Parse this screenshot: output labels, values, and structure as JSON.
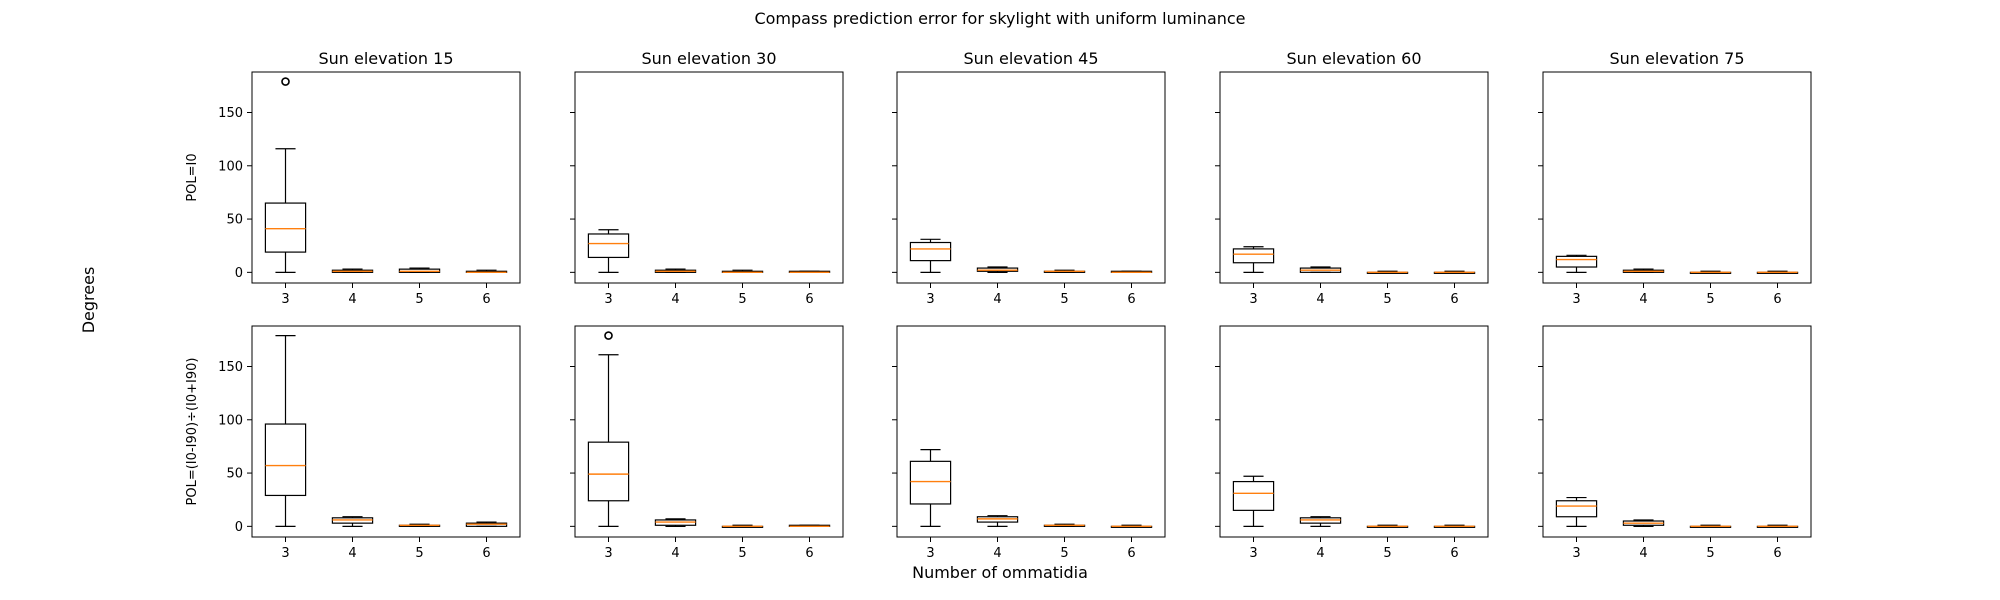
{
  "figure": {
    "title": "Compass prediction error for skylight with uniform luminance",
    "xlabel": "Number of ommatidia",
    "ylabel": "Degrees"
  },
  "chart_data": {
    "type": "box",
    "title": "Compass prediction error for skylight with uniform luminance",
    "xlabel": "Number of ommatidia",
    "ylabel": "Degrees",
    "columns": [
      "Sun elevation 15",
      "Sun elevation 30",
      "Sun elevation 45",
      "Sun elevation 60",
      "Sun elevation 75"
    ],
    "rows": [
      "POL=I0",
      "POL=(I0-I90)÷(I0+I90)"
    ],
    "categories": [
      "3",
      "4",
      "5",
      "6"
    ],
    "ylim": [
      -10,
      188
    ],
    "yticks": [
      0,
      50,
      100,
      150
    ],
    "colors": {
      "box": "#000000",
      "median": "#ff7f0e"
    },
    "panels": [
      {
        "row": 0,
        "col": 0,
        "boxes": [
          {
            "x": "3",
            "whislo": 0,
            "q1": 19,
            "med": 41,
            "q3": 65,
            "whishi": 116,
            "fliers": [
              179
            ]
          },
          {
            "x": "4",
            "whislo": 0,
            "q1": 0,
            "med": 1,
            "q3": 2,
            "whishi": 3,
            "fliers": []
          },
          {
            "x": "5",
            "whislo": 0,
            "q1": 0,
            "med": 1,
            "q3": 3,
            "whishi": 4,
            "fliers": []
          },
          {
            "x": "6",
            "whislo": 0,
            "q1": 0,
            "med": 0,
            "q3": 1,
            "whishi": 2,
            "fliers": []
          }
        ]
      },
      {
        "row": 0,
        "col": 1,
        "boxes": [
          {
            "x": "3",
            "whislo": 0,
            "q1": 14,
            "med": 27,
            "q3": 36,
            "whishi": 40,
            "fliers": []
          },
          {
            "x": "4",
            "whislo": 0,
            "q1": 0,
            "med": 1,
            "q3": 2,
            "whishi": 3,
            "fliers": []
          },
          {
            "x": "5",
            "whislo": 0,
            "q1": 0,
            "med": 0,
            "q3": 1,
            "whishi": 2,
            "fliers": []
          },
          {
            "x": "6",
            "whislo": 0,
            "q1": 0,
            "med": 0,
            "q3": 1,
            "whishi": 1,
            "fliers": []
          }
        ]
      },
      {
        "row": 0,
        "col": 2,
        "boxes": [
          {
            "x": "3",
            "whislo": 0,
            "q1": 11,
            "med": 22,
            "q3": 28,
            "whishi": 31,
            "fliers": []
          },
          {
            "x": "4",
            "whislo": 0,
            "q1": 1,
            "med": 2,
            "q3": 4,
            "whishi": 5,
            "fliers": []
          },
          {
            "x": "5",
            "whislo": 0,
            "q1": 0,
            "med": 1,
            "q3": 1,
            "whishi": 2,
            "fliers": []
          },
          {
            "x": "6",
            "whislo": 0,
            "q1": 0,
            "med": 0,
            "q3": 1,
            "whishi": 1,
            "fliers": []
          }
        ]
      },
      {
        "row": 0,
        "col": 3,
        "boxes": [
          {
            "x": "3",
            "whislo": 0,
            "q1": 9,
            "med": 17,
            "q3": 22,
            "whishi": 24,
            "fliers": []
          },
          {
            "x": "4",
            "whislo": 0,
            "q1": 0,
            "med": 2,
            "q3": 4,
            "whishi": 5,
            "fliers": []
          },
          {
            "x": "5",
            "whislo": 0,
            "q1": 0,
            "med": 0,
            "q3": 0,
            "whishi": 1,
            "fliers": []
          },
          {
            "x": "6",
            "whislo": 0,
            "q1": 0,
            "med": 0,
            "q3": 0,
            "whishi": 1,
            "fliers": []
          }
        ]
      },
      {
        "row": 0,
        "col": 4,
        "boxes": [
          {
            "x": "3",
            "whislo": 0,
            "q1": 5,
            "med": 12,
            "q3": 15,
            "whishi": 16,
            "fliers": []
          },
          {
            "x": "4",
            "whislo": 0,
            "q1": 0,
            "med": 1,
            "q3": 2,
            "whishi": 3,
            "fliers": []
          },
          {
            "x": "5",
            "whislo": 0,
            "q1": 0,
            "med": 0,
            "q3": 0,
            "whishi": 1,
            "fliers": []
          },
          {
            "x": "6",
            "whislo": 0,
            "q1": 0,
            "med": 0,
            "q3": 0,
            "whishi": 1,
            "fliers": []
          }
        ]
      },
      {
        "row": 1,
        "col": 0,
        "boxes": [
          {
            "x": "3",
            "whislo": 0,
            "q1": 29,
            "med": 57,
            "q3": 96,
            "whishi": 179,
            "fliers": []
          },
          {
            "x": "4",
            "whislo": 0,
            "q1": 3,
            "med": 6,
            "q3": 8,
            "whishi": 9,
            "fliers": []
          },
          {
            "x": "5",
            "whislo": 0,
            "q1": 0,
            "med": 1,
            "q3": 1,
            "whishi": 2,
            "fliers": []
          },
          {
            "x": "6",
            "whislo": 0,
            "q1": 0,
            "med": 2,
            "q3": 3,
            "whishi": 4,
            "fliers": []
          }
        ]
      },
      {
        "row": 1,
        "col": 1,
        "boxes": [
          {
            "x": "3",
            "whislo": 0,
            "q1": 24,
            "med": 49,
            "q3": 79,
            "whishi": 161,
            "fliers": [
              179
            ]
          },
          {
            "x": "4",
            "whislo": 0,
            "q1": 1,
            "med": 4,
            "q3": 6,
            "whishi": 7,
            "fliers": []
          },
          {
            "x": "5",
            "whislo": 0,
            "q1": 0,
            "med": 0,
            "q3": 0,
            "whishi": 1,
            "fliers": []
          },
          {
            "x": "6",
            "whislo": 0,
            "q1": 0,
            "med": 0,
            "q3": 1,
            "whishi": 1,
            "fliers": []
          }
        ]
      },
      {
        "row": 1,
        "col": 2,
        "boxes": [
          {
            "x": "3",
            "whislo": 0,
            "q1": 21,
            "med": 42,
            "q3": 61,
            "whishi": 72,
            "fliers": []
          },
          {
            "x": "4",
            "whislo": 0,
            "q1": 4,
            "med": 7,
            "q3": 9,
            "whishi": 10,
            "fliers": []
          },
          {
            "x": "5",
            "whislo": 0,
            "q1": 0,
            "med": 1,
            "q3": 1,
            "whishi": 2,
            "fliers": []
          },
          {
            "x": "6",
            "whislo": 0,
            "q1": 0,
            "med": 0,
            "q3": 0,
            "whishi": 1,
            "fliers": []
          }
        ]
      },
      {
        "row": 1,
        "col": 3,
        "boxes": [
          {
            "x": "3",
            "whislo": 0,
            "q1": 15,
            "med": 31,
            "q3": 42,
            "whishi": 47,
            "fliers": []
          },
          {
            "x": "4",
            "whislo": 0,
            "q1": 3,
            "med": 6,
            "q3": 8,
            "whishi": 9,
            "fliers": []
          },
          {
            "x": "5",
            "whislo": 0,
            "q1": 0,
            "med": 0,
            "q3": 0,
            "whishi": 1,
            "fliers": []
          },
          {
            "x": "6",
            "whislo": 0,
            "q1": 0,
            "med": 0,
            "q3": 0,
            "whishi": 1,
            "fliers": []
          }
        ]
      },
      {
        "row": 1,
        "col": 4,
        "boxes": [
          {
            "x": "3",
            "whislo": 0,
            "q1": 9,
            "med": 19,
            "q3": 24,
            "whishi": 27,
            "fliers": []
          },
          {
            "x": "4",
            "whislo": 0,
            "q1": 1,
            "med": 3,
            "q3": 5,
            "whishi": 6,
            "fliers": []
          },
          {
            "x": "5",
            "whislo": 0,
            "q1": 0,
            "med": 0,
            "q3": 0,
            "whishi": 1,
            "fliers": []
          },
          {
            "x": "6",
            "whislo": 0,
            "q1": 0,
            "med": 0,
            "q3": 0,
            "whishi": 1,
            "fliers": []
          }
        ]
      }
    ]
  }
}
